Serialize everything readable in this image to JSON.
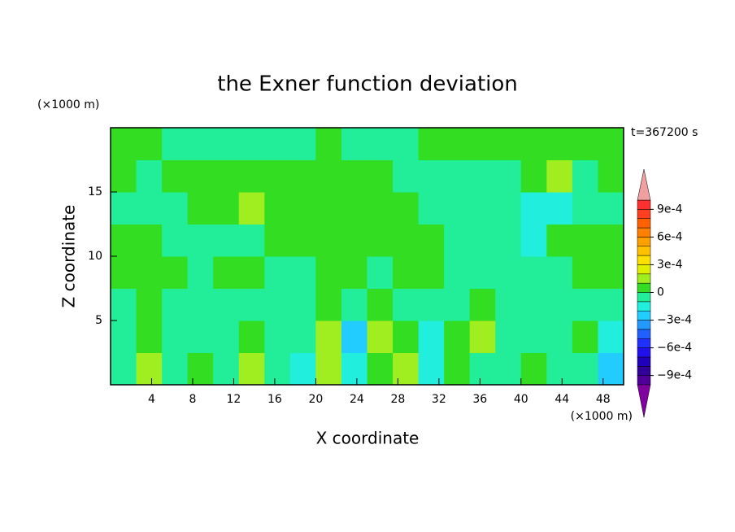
{
  "chart_data": {
    "type": "contour",
    "title": "the Exner function deviation",
    "x_label": "X coordinate",
    "y_label": "Z coordinate",
    "x_unit": "(×1000 m)",
    "y_unit": "(×1000 m)",
    "annotation": "t=367200 s",
    "xlim": [
      0,
      50
    ],
    "ylim": [
      0,
      20
    ],
    "xticks": [
      4,
      8,
      12,
      16,
      20,
      24,
      28,
      32,
      36,
      40,
      44,
      48
    ],
    "yticks": [
      5,
      10,
      15
    ],
    "x": [
      1.25,
      3.75,
      6.25,
      8.75,
      11.25,
      13.75,
      16.25,
      18.75,
      21.25,
      23.75,
      26.25,
      28.75,
      31.25,
      33.75,
      36.25,
      38.75,
      41.25,
      43.75,
      46.25,
      48.75
    ],
    "y": [
      1.25,
      3.75,
      6.25,
      8.75,
      11.25,
      13.75,
      16.25,
      18.75
    ],
    "z": [
      [
        -5e-05,
        0.00015,
        -5e-05,
        5e-05,
        -5e-05,
        0.00015,
        -5e-05,
        -0.00015,
        0.00015,
        -0.00015,
        5e-05,
        0.00015,
        -0.00015,
        5e-05,
        -5e-05,
        -5e-05,
        5e-05,
        -5e-05,
        -5e-05,
        -0.00025
      ],
      [
        -5e-05,
        5e-05,
        -5e-05,
        -5e-05,
        -5e-05,
        5e-05,
        -5e-05,
        -5e-05,
        0.00015,
        -0.00025,
        0.00015,
        5e-05,
        -0.00015,
        5e-05,
        0.00015,
        -5e-05,
        -5e-05,
        -5e-05,
        5e-05,
        -0.00015
      ],
      [
        -5e-05,
        5e-05,
        -5e-05,
        -5e-05,
        -5e-05,
        -5e-05,
        -5e-05,
        -5e-05,
        5e-05,
        -5e-05,
        5e-05,
        -5e-05,
        -5e-05,
        -5e-05,
        5e-05,
        -5e-05,
        -5e-05,
        -5e-05,
        -5e-05,
        -5e-05
      ],
      [
        5e-05,
        5e-05,
        5e-05,
        -5e-05,
        5e-05,
        5e-05,
        -5e-05,
        -5e-05,
        5e-05,
        5e-05,
        -5e-05,
        5e-05,
        5e-05,
        -5e-05,
        -5e-05,
        -5e-05,
        -5e-05,
        -5e-05,
        5e-05,
        5e-05
      ],
      [
        5e-05,
        5e-05,
        -5e-05,
        -5e-05,
        -5e-05,
        -5e-05,
        5e-05,
        5e-05,
        5e-05,
        5e-05,
        5e-05,
        5e-05,
        5e-05,
        -5e-05,
        -5e-05,
        -5e-05,
        -0.00015,
        5e-05,
        5e-05,
        5e-05
      ],
      [
        -5e-05,
        -5e-05,
        -5e-05,
        5e-05,
        5e-05,
        0.00015,
        5e-05,
        5e-05,
        5e-05,
        5e-05,
        5e-05,
        5e-05,
        -5e-05,
        -5e-05,
        -5e-05,
        -5e-05,
        -0.00015,
        -0.00015,
        -5e-05,
        -5e-05
      ],
      [
        5e-05,
        -5e-05,
        5e-05,
        5e-05,
        5e-05,
        5e-05,
        5e-05,
        5e-05,
        5e-05,
        5e-05,
        5e-05,
        -5e-05,
        -5e-05,
        -5e-05,
        -5e-05,
        -5e-05,
        5e-05,
        0.00015,
        -5e-05,
        5e-05
      ],
      [
        5e-05,
        5e-05,
        -5e-05,
        -5e-05,
        -5e-05,
        -5e-05,
        -5e-05,
        -5e-05,
        5e-05,
        -5e-05,
        -5e-05,
        -5e-05,
        5e-05,
        5e-05,
        5e-05,
        5e-05,
        5e-05,
        5e-05,
        5e-05,
        5e-05
      ]
    ],
    "colorbar": {
      "levels": [
        -0.001,
        -0.0009,
        -0.0008,
        -0.0007,
        -0.0006,
        -0.0005,
        -0.0004,
        -0.0003,
        -0.0002,
        -0.0001,
        0,
        0.0001,
        0.0002,
        0.0003,
        0.0004,
        0.0005,
        0.0006,
        0.0007,
        0.0008,
        0.0009,
        0.001
      ],
      "colors": [
        "#500099",
        "#300099",
        "#2000bb",
        "#2010ee",
        "#2030ff",
        "#2060ff",
        "#2299ff",
        "#22ccff",
        "#22eedd",
        "#22ee99",
        "#33dd22",
        "#a0ee20",
        "#e0f000",
        "#ffe000",
        "#ffc000",
        "#ffa000",
        "#ff8000",
        "#ff6000",
        "#ff4020",
        "#ff3030"
      ],
      "under_color": "#8000a0",
      "over_color": "#f0a0a0",
      "ticks": [
        {
          "value": -0.0009,
          "label": "−9e-4"
        },
        {
          "value": -0.0006,
          "label": "−6e-4"
        },
        {
          "value": -0.0003,
          "label": "−3e-4"
        },
        0,
        {
          "value": 0.0003,
          "label": "3e-4"
        },
        {
          "value": 0.0006,
          "label": "6e-4"
        },
        {
          "value": 0.0009,
          "label": "9e-4"
        }
      ]
    }
  }
}
